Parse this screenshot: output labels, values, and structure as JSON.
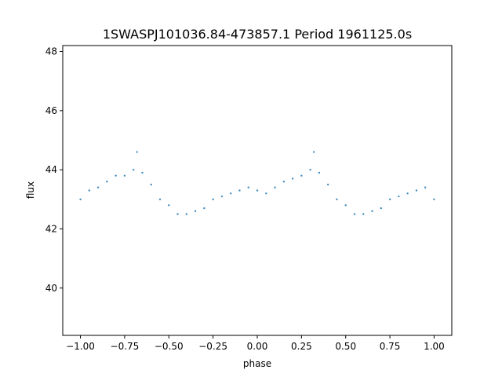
{
  "chart_data": {
    "type": "scatter",
    "title": "1SWASPJ101036.84-473857.1 Period 1961125.0s",
    "xlabel": "phase",
    "ylabel": "flux",
    "xlim": [
      -1.1,
      1.1
    ],
    "ylim": [
      38.4,
      48.2
    ],
    "grid": false,
    "x_ticks": [
      -1.0,
      -0.75,
      -0.5,
      -0.25,
      0.0,
      0.25,
      0.5,
      0.75,
      1.0
    ],
    "x_tick_labels": [
      "−1.00",
      "−0.75",
      "−0.50",
      "−0.25",
      "0.00",
      "0.25",
      "0.50",
      "0.75",
      "1.00"
    ],
    "y_ticks": [
      40,
      42,
      44,
      46,
      48
    ],
    "y_tick_labels": [
      "40",
      "42",
      "44",
      "46",
      "48"
    ],
    "marker_color": "#1f77b4",
    "series": [
      {
        "x": [
          -1.0,
          -0.95,
          -0.9,
          -0.85,
          -0.8,
          -0.75,
          -0.7,
          -0.68,
          -0.65,
          -0.6,
          -0.55,
          -0.5,
          -0.45,
          -0.4,
          -0.35,
          -0.3,
          -0.25,
          -0.2,
          -0.15,
          -0.1,
          -0.05,
          0.0,
          0.05,
          0.1,
          0.15,
          0.2,
          0.25,
          0.3,
          0.32,
          0.35,
          0.4,
          0.45,
          0.5,
          0.55,
          0.6,
          0.65,
          0.7,
          0.75,
          0.8,
          0.85,
          0.9,
          0.95,
          1.0
        ],
        "y": [
          43.0,
          43.3,
          43.4,
          43.6,
          43.8,
          43.8,
          44.0,
          44.6,
          43.9,
          43.5,
          43.0,
          42.8,
          42.5,
          42.5,
          42.6,
          42.7,
          43.0,
          43.1,
          43.2,
          43.3,
          43.4,
          43.3,
          43.2,
          43.4,
          43.6,
          43.7,
          43.8,
          44.0,
          44.6,
          43.9,
          43.5,
          43.0,
          42.8,
          42.5,
          42.5,
          42.6,
          42.7,
          43.0,
          43.1,
          43.2,
          43.3,
          43.4,
          43.0
        ]
      }
    ]
  }
}
